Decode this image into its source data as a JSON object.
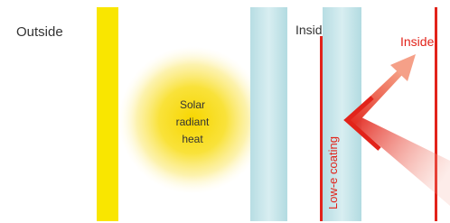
{
  "labels": {
    "outside": "Outside",
    "inside_left": "Inside",
    "inside_right": "Inside",
    "heat_line1": "Solar",
    "heat_line2": "radiant",
    "heat_line3": "heat",
    "coating": "Low-e coating"
  }
}
